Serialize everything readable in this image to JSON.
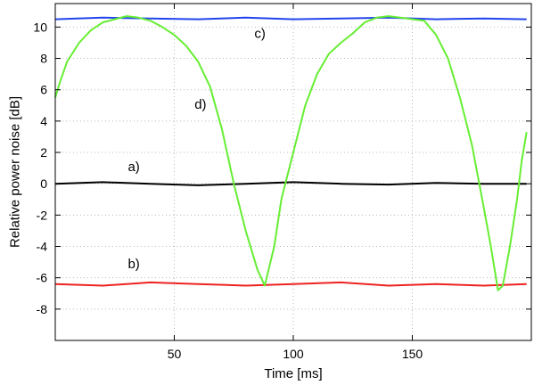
{
  "chart_data": {
    "type": "line",
    "title": "",
    "xlabel": "Time [ms]",
    "ylabel": "Relative power noise [dB]",
    "xlim": [
      0,
      200
    ],
    "ylim": [
      -10,
      11.5
    ],
    "x_ticks": [
      50,
      100,
      150
    ],
    "y_ticks": [
      -8,
      -6,
      -4,
      -2,
      0,
      2,
      4,
      6,
      8,
      10
    ],
    "grid": true,
    "legend": "none",
    "series": [
      {
        "label": "a)",
        "color": "#000000",
        "points": [
          [
            0,
            0.0
          ],
          [
            20,
            0.1
          ],
          [
            40,
            0.0
          ],
          [
            60,
            -0.1
          ],
          [
            80,
            0.0
          ],
          [
            100,
            0.1
          ],
          [
            120,
            0.0
          ],
          [
            140,
            -0.05
          ],
          [
            160,
            0.05
          ],
          [
            180,
            0.0
          ],
          [
            198,
            0.0
          ]
        ]
      },
      {
        "label": "b)",
        "color": "#ee2222",
        "points": [
          [
            0,
            -6.4
          ],
          [
            20,
            -6.5
          ],
          [
            40,
            -6.3
          ],
          [
            60,
            -6.4
          ],
          [
            80,
            -6.5
          ],
          [
            100,
            -6.4
          ],
          [
            120,
            -6.3
          ],
          [
            140,
            -6.5
          ],
          [
            160,
            -6.4
          ],
          [
            180,
            -6.5
          ],
          [
            198,
            -6.4
          ]
        ]
      },
      {
        "label": "c)",
        "color": "#2244ee",
        "points": [
          [
            0,
            10.5
          ],
          [
            20,
            10.6
          ],
          [
            40,
            10.55
          ],
          [
            60,
            10.5
          ],
          [
            80,
            10.6
          ],
          [
            100,
            10.5
          ],
          [
            120,
            10.55
          ],
          [
            140,
            10.6
          ],
          [
            160,
            10.5
          ],
          [
            180,
            10.55
          ],
          [
            198,
            10.5
          ]
        ]
      },
      {
        "label": "d)",
        "color": "#66ee33",
        "points": [
          [
            0,
            5.5
          ],
          [
            2,
            6.5
          ],
          [
            5,
            7.8
          ],
          [
            10,
            9.0
          ],
          [
            15,
            9.8
          ],
          [
            20,
            10.3
          ],
          [
            25,
            10.5
          ],
          [
            30,
            10.7
          ],
          [
            35,
            10.6
          ],
          [
            40,
            10.4
          ],
          [
            45,
            10.0
          ],
          [
            50,
            9.5
          ],
          [
            55,
            8.8
          ],
          [
            60,
            7.8
          ],
          [
            65,
            6.2
          ],
          [
            70,
            3.5
          ],
          [
            75,
            0.0
          ],
          [
            80,
            -3.0
          ],
          [
            85,
            -5.5
          ],
          [
            88,
            -6.5
          ],
          [
            92,
            -4.0
          ],
          [
            95,
            -1.0
          ],
          [
            100,
            2.0
          ],
          [
            105,
            5.0
          ],
          [
            110,
            7.0
          ],
          [
            115,
            8.3
          ],
          [
            120,
            9.0
          ],
          [
            125,
            9.6
          ],
          [
            130,
            10.3
          ],
          [
            135,
            10.6
          ],
          [
            140,
            10.7
          ],
          [
            145,
            10.6
          ],
          [
            150,
            10.5
          ],
          [
            155,
            10.4
          ],
          [
            160,
            9.5
          ],
          [
            165,
            8.0
          ],
          [
            170,
            5.5
          ],
          [
            175,
            2.5
          ],
          [
            180,
            -1.5
          ],
          [
            183,
            -4.0
          ],
          [
            186,
            -6.8
          ],
          [
            188,
            -6.5
          ],
          [
            191,
            -4.0
          ],
          [
            194,
            -1.0
          ],
          [
            196,
            1.5
          ],
          [
            198,
            3.3
          ]
        ]
      }
    ],
    "annotations": [
      {
        "text": "a)",
        "x": 33,
        "y": 0.8
      },
      {
        "text": "b)",
        "x": 33,
        "y": -5.4
      },
      {
        "text": "c)",
        "x": 86,
        "y": 9.3
      },
      {
        "text": "d)",
        "x": 61,
        "y": 4.8
      }
    ]
  }
}
